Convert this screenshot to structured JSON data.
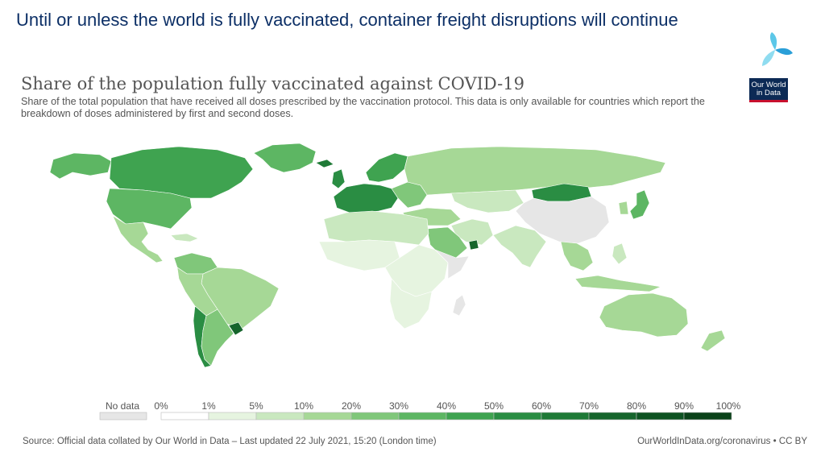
{
  "slide": {
    "title": "Until or unless the world is fully vaccinated, container freight disruptions will continue",
    "logo_icon": "tri-leaf-logo-icon"
  },
  "map": {
    "title": "Share of the population fully vaccinated against COVID-19",
    "subtitle": "Share of the total population that have received all doses prescribed by the vaccination protocol. This data is only available for countries which report the breakdown of doses administered by first and second doses.",
    "logo_line1": "Our World",
    "logo_line2": "in Data",
    "legend": {
      "no_data_label": "No data",
      "no_data_color": "#e6e6e6",
      "bins": [
        {
          "label": "0%",
          "color": "#ffffff"
        },
        {
          "label": "1%",
          "color": "#e6f4e0"
        },
        {
          "label": "5%",
          "color": "#c9e8bf"
        },
        {
          "label": "10%",
          "color": "#a6d896"
        },
        {
          "label": "20%",
          "color": "#80c77a"
        },
        {
          "label": "30%",
          "color": "#5db663"
        },
        {
          "label": "40%",
          "color": "#3fa350"
        },
        {
          "label": "50%",
          "color": "#2a8d43"
        },
        {
          "label": "60%",
          "color": "#1f7a37"
        },
        {
          "label": "70%",
          "color": "#16652c"
        },
        {
          "label": "80%",
          "color": "#0e5322"
        },
        {
          "label": "90%",
          "color": "#0a4219"
        }
      ],
      "final_label": "100%"
    },
    "source": "Source: Official data collated by Our World in Data – Last updated 22 July 2021, 15:20 (London time)",
    "url": "OurWorldInData.org/coronavirus • CC BY"
  }
}
